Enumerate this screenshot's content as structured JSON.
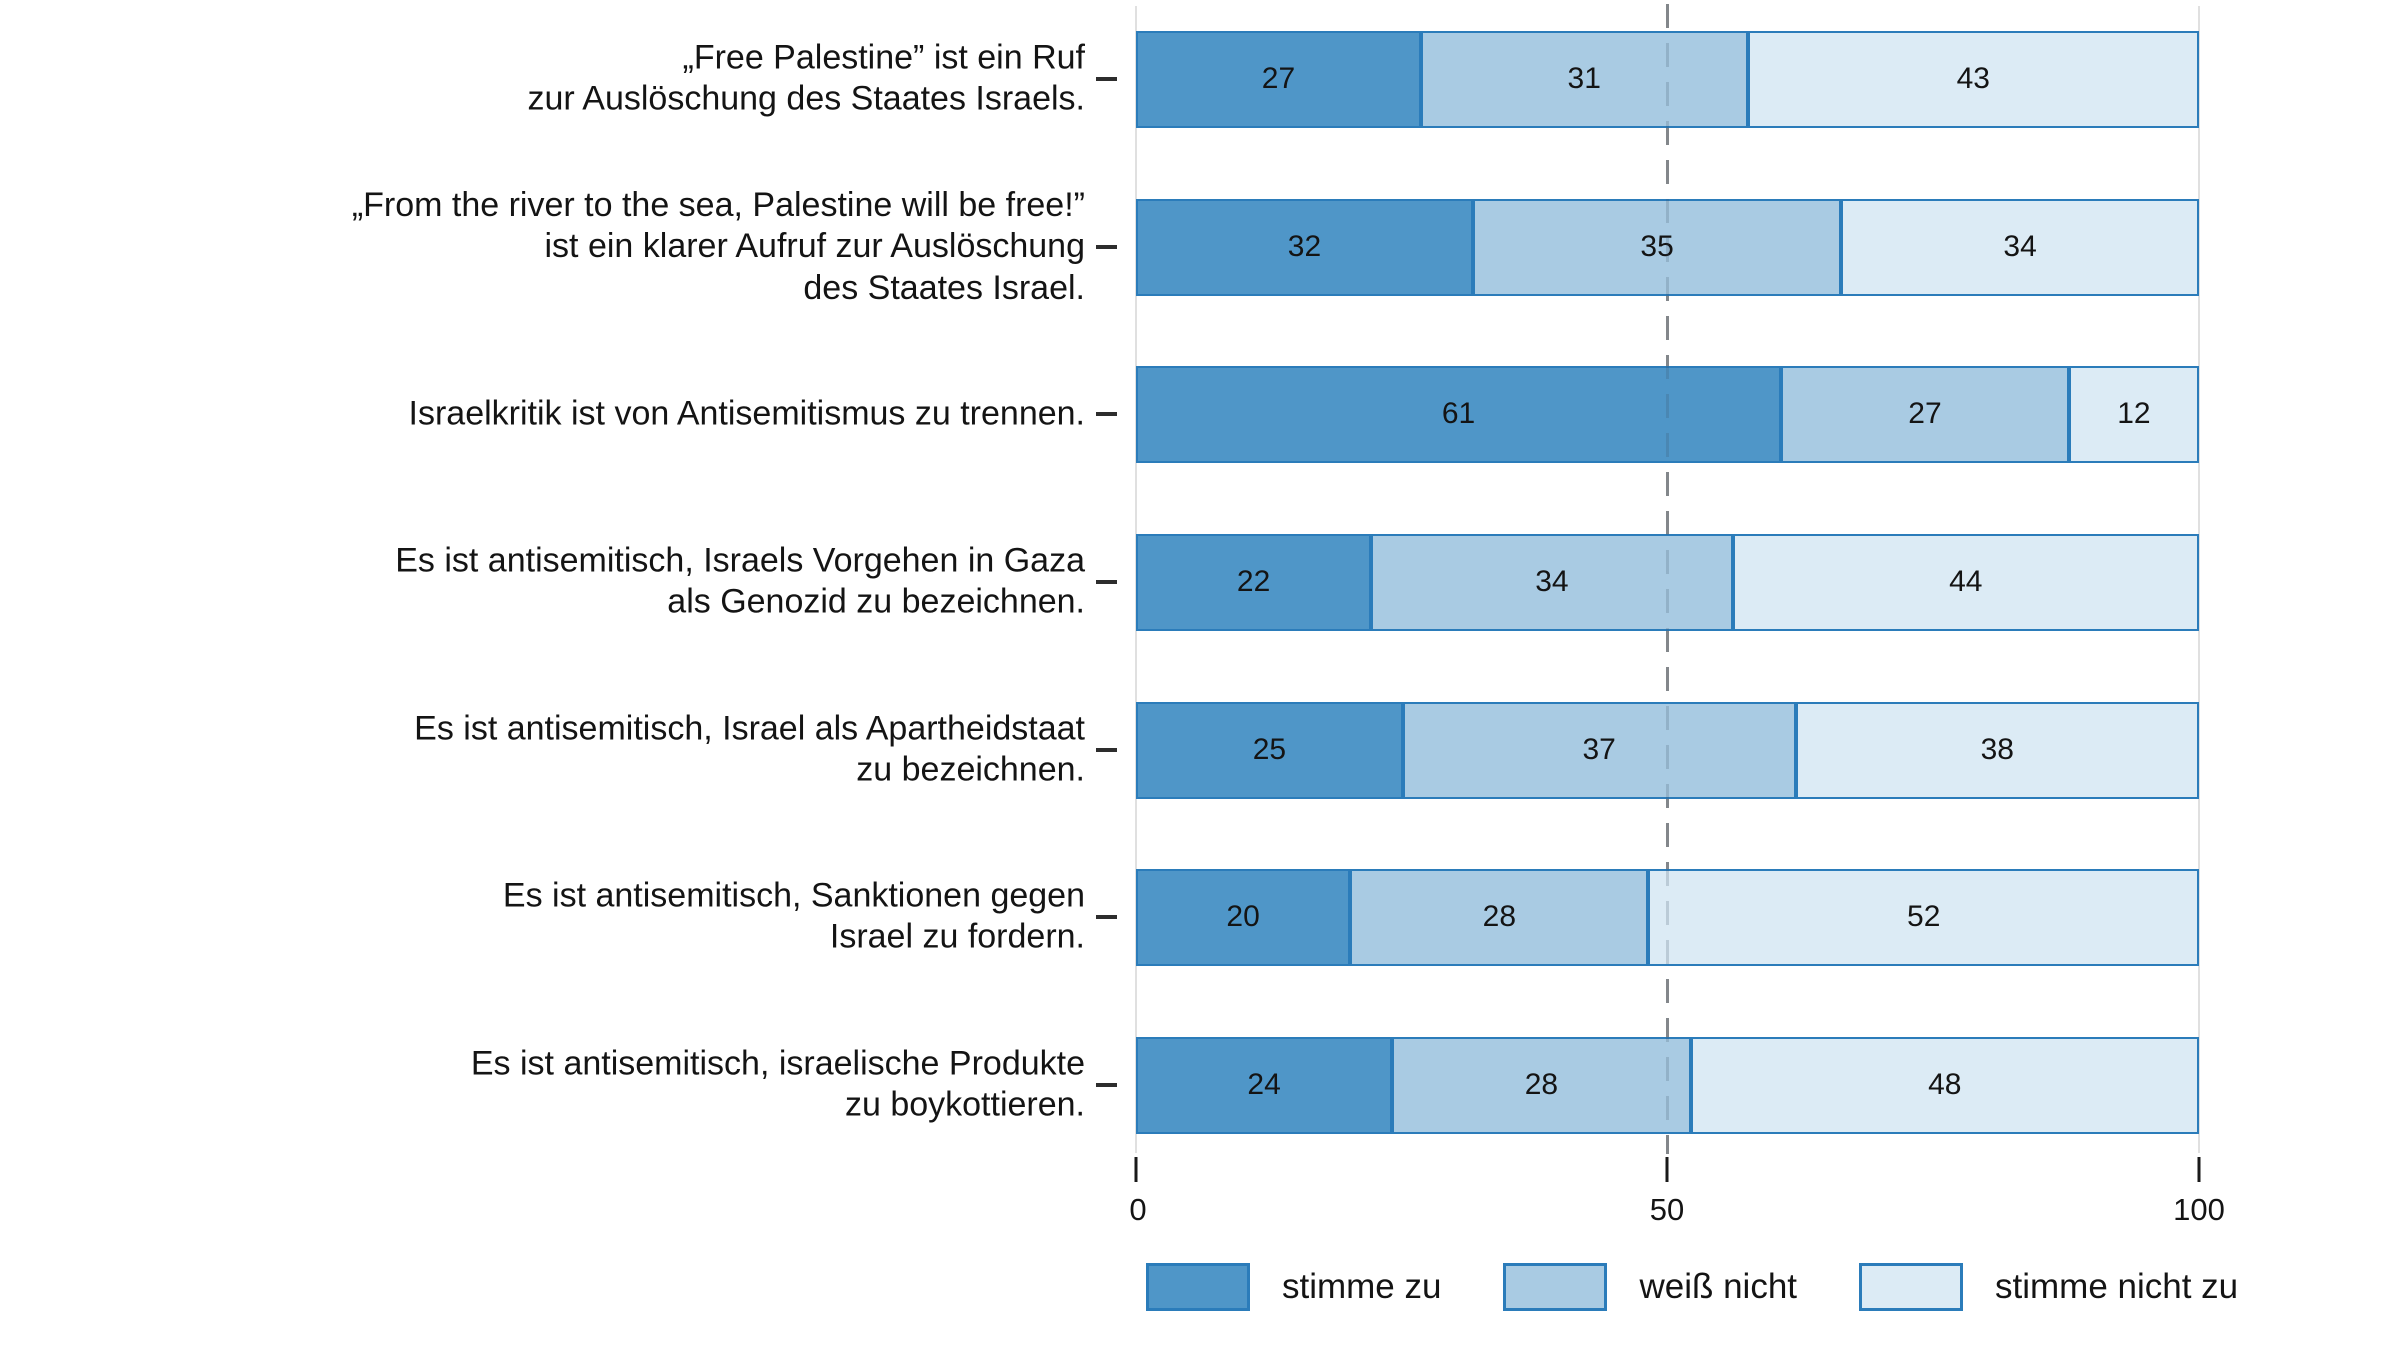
{
  "chart_data": {
    "type": "bar",
    "orientation": "horizontal",
    "stacked": true,
    "title": "",
    "categories": [
      "„Free Palestine” ist ein Ruf\nzur Auslöschung des Staates Israels.",
      "„From the river to the sea, Palestine will be free!”\nist ein klarer Aufruf zur Auslöschung\ndes Staates Israel.",
      "Israelkritik ist von Antisemitismus zu trennen.",
      "Es ist antisemitisch, Israels Vorgehen in Gaza\nals Genozid zu bezeichnen.",
      "Es ist antisemitisch, Israel als Apartheidstaat\nzu bezeichnen.",
      "Es ist antisemitisch, Sanktionen gegen\nIsrael zu fordern.",
      "Es ist antisemitisch, israelische Produkte\nzu boykottieren."
    ],
    "series": [
      {
        "name": "stimme zu",
        "color": "#4f96c8",
        "values": [
          27,
          32,
          61,
          22,
          25,
          20,
          24
        ]
      },
      {
        "name": "weiß nicht",
        "color": "#a9cbe3",
        "values": [
          31,
          35,
          27,
          34,
          37,
          28,
          28
        ]
      },
      {
        "name": "stimme nicht zu",
        "color": "#dcebf5",
        "values": [
          43,
          34,
          12,
          44,
          38,
          52,
          48
        ]
      }
    ],
    "xlabel": "",
    "ylabel": "",
    "xlim": [
      0,
      100
    ],
    "x_ticks": [
      "0",
      "50",
      "100"
    ],
    "reference_line_x": 50,
    "grid": "light vertical lines at 0 and 100, gray dashed line at 50",
    "legend_position": "bottom",
    "colors": {
      "bar_border": "#2b7cba",
      "gridline": "#e0e0e0",
      "reference_line": "#969696",
      "text": "#141414"
    }
  }
}
